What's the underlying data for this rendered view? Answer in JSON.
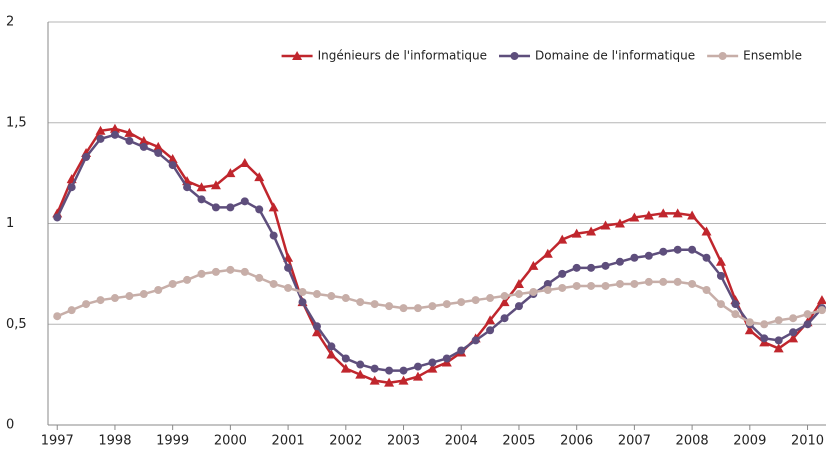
{
  "chart_data": {
    "type": "line",
    "x": [
      1997,
      1997.25,
      1997.5,
      1997.75,
      1998,
      1998.25,
      1998.5,
      1998.75,
      1999,
      1999.25,
      1999.5,
      1999.75,
      2000,
      2000.25,
      2000.5,
      2000.75,
      2001,
      2001.25,
      2001.5,
      2001.75,
      2002,
      2002.25,
      2002.5,
      2002.75,
      2003,
      2003.25,
      2003.5,
      2003.75,
      2004,
      2004.25,
      2004.5,
      2004.75,
      2005,
      2005.25,
      2005.5,
      2005.75,
      2006,
      2006.25,
      2006.5,
      2006.75,
      2007,
      2007.25,
      2007.5,
      2007.75,
      2008,
      2008.25,
      2008.5,
      2008.75,
      2009,
      2009.25,
      2009.5,
      2009.75,
      2010,
      2010.25
    ],
    "series": [
      {
        "name": "Ingénieurs de l'informatique",
        "color": "#c0262d",
        "marker": "triangle",
        "values": [
          1.05,
          1.22,
          1.35,
          1.46,
          1.47,
          1.45,
          1.41,
          1.38,
          1.32,
          1.21,
          1.18,
          1.19,
          1.25,
          1.3,
          1.23,
          1.08,
          0.83,
          0.61,
          0.46,
          0.35,
          0.28,
          0.25,
          0.22,
          0.21,
          0.22,
          0.24,
          0.28,
          0.31,
          0.36,
          0.43,
          0.52,
          0.61,
          0.7,
          0.79,
          0.85,
          0.92,
          0.95,
          0.96,
          0.99,
          1.0,
          1.03,
          1.04,
          1.05,
          1.05,
          1.04,
          0.96,
          0.81,
          0.62,
          0.47,
          0.41,
          0.38,
          0.43,
          0.51,
          0.62
        ]
      },
      {
        "name": "Domaine de l'informatique",
        "color": "#5e4e7c",
        "marker": "circle",
        "values": [
          1.03,
          1.18,
          1.33,
          1.42,
          1.44,
          1.41,
          1.38,
          1.35,
          1.29,
          1.18,
          1.12,
          1.08,
          1.08,
          1.11,
          1.07,
          0.94,
          0.78,
          0.61,
          0.49,
          0.39,
          0.33,
          0.3,
          0.28,
          0.27,
          0.27,
          0.29,
          0.31,
          0.33,
          0.37,
          0.42,
          0.47,
          0.53,
          0.59,
          0.65,
          0.7,
          0.75,
          0.78,
          0.78,
          0.79,
          0.81,
          0.83,
          0.84,
          0.86,
          0.87,
          0.87,
          0.83,
          0.74,
          0.6,
          0.5,
          0.43,
          0.42,
          0.46,
          0.5,
          0.58
        ]
      },
      {
        "name": "Ensemble",
        "color": "#c7aea8",
        "marker": "circle",
        "values": [
          0.54,
          0.57,
          0.6,
          0.62,
          0.63,
          0.64,
          0.65,
          0.67,
          0.7,
          0.72,
          0.75,
          0.76,
          0.77,
          0.76,
          0.73,
          0.7,
          0.68,
          0.66,
          0.65,
          0.64,
          0.63,
          0.61,
          0.6,
          0.59,
          0.58,
          0.58,
          0.59,
          0.6,
          0.61,
          0.62,
          0.63,
          0.64,
          0.65,
          0.66,
          0.67,
          0.68,
          0.69,
          0.69,
          0.69,
          0.7,
          0.7,
          0.71,
          0.71,
          0.71,
          0.7,
          0.67,
          0.6,
          0.55,
          0.51,
          0.5,
          0.52,
          0.53,
          0.55,
          0.57
        ]
      }
    ],
    "xlim": [
      1996.84,
      2010.32
    ],
    "xticks": [
      1997,
      1998,
      1999,
      2000,
      2001,
      2002,
      2003,
      2004,
      2005,
      2006,
      2007,
      2008,
      2009,
      2010
    ],
    "ylim": [
      0,
      2
    ],
    "yticks": [
      0,
      {
        "value": 0.5,
        "label": "0,5"
      },
      1,
      {
        "value": 1.5,
        "label": "1,5"
      },
      2
    ],
    "grid": true,
    "legend": "top-right"
  }
}
